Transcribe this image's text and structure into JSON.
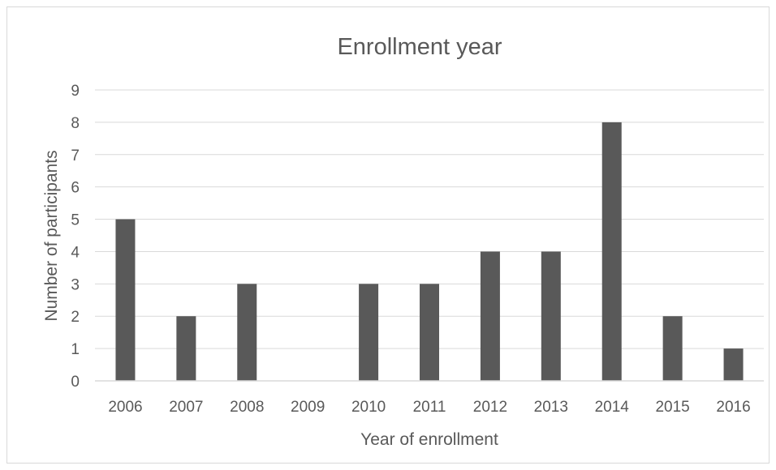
{
  "chart_data": {
    "type": "bar",
    "title": "Enrollment year",
    "xlabel": "Year of enrollment",
    "ylabel": "Number of participants",
    "categories": [
      "2006",
      "2007",
      "2008",
      "2009",
      "2010",
      "2011",
      "2012",
      "2013",
      "2014",
      "2015",
      "2016"
    ],
    "values": [
      5,
      2,
      3,
      0,
      3,
      3,
      4,
      4,
      8,
      2,
      1
    ],
    "ylim": [
      0,
      9
    ],
    "yticks": [
      "0",
      "1",
      "2",
      "3",
      "4",
      "5",
      "6",
      "7",
      "8",
      "9"
    ],
    "grid": true,
    "legend": "none",
    "bar_color": "#595959",
    "grid_color": "#d9d9d9"
  }
}
